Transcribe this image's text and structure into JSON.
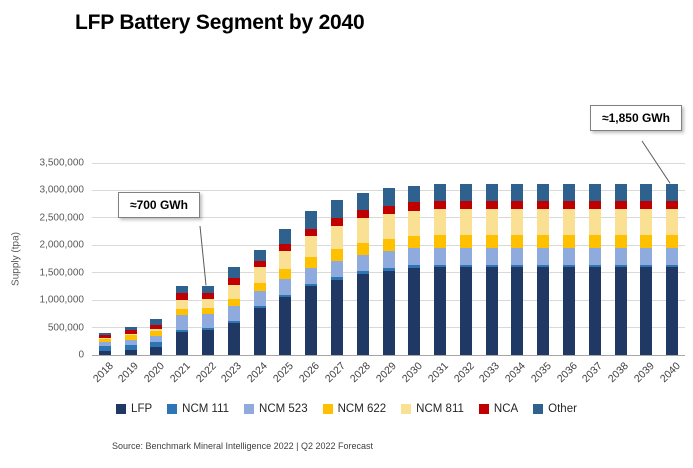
{
  "title": "LFP Battery Segment by 2040",
  "source": "Source:  Benchmark Mineral Intelligence 2022 | Q2 2022 Forecast",
  "chart_data": {
    "type": "bar",
    "stacked": true,
    "title": "LFP Battery Segment by 2040",
    "xlabel": "",
    "ylabel": "Supply (tpa)",
    "ylim": [
      0,
      3500000
    ],
    "ytick_step": 500000,
    "ytick_labels": [
      "0",
      "500,000",
      "1,000,000",
      "1,500,000",
      "2,000,000",
      "2,500,000",
      "3,000,000",
      "3,500,000"
    ],
    "grid": true,
    "legend_position": "bottom",
    "categories": [
      "2018",
      "2019",
      "2020",
      "2021",
      "2022",
      "2023",
      "2024",
      "2025",
      "2026",
      "2027",
      "2028",
      "2029",
      "2030",
      "2031",
      "2032",
      "2033",
      "2034",
      "2035",
      "2036",
      "2037",
      "2038",
      "2039",
      "2040"
    ],
    "series": [
      {
        "name": "LFP",
        "color": "#1F3864",
        "values": [
          70000,
          90000,
          140000,
          420000,
          460000,
          580000,
          850000,
          1060000,
          1250000,
          1370000,
          1480000,
          1540000,
          1590000,
          1600000,
          1600000,
          1600000,
          1600000,
          1600000,
          1600000,
          1600000,
          1600000,
          1600000,
          1600000
        ]
      },
      {
        "name": "NCM 111",
        "color": "#2E75B6",
        "values": [
          90000,
          100000,
          90000,
          30000,
          30000,
          40000,
          40000,
          40000,
          45000,
          45000,
          50000,
          50000,
          50000,
          50000,
          50000,
          50000,
          50000,
          50000,
          50000,
          50000,
          50000,
          50000,
          50000
        ]
      },
      {
        "name": "NCM 523",
        "color": "#8FAADC",
        "values": [
          70000,
          90000,
          110000,
          280000,
          260000,
          280000,
          280000,
          290000,
          290000,
          300000,
          300000,
          305000,
          305000,
          305000,
          305000,
          305000,
          305000,
          305000,
          305000,
          305000,
          305000,
          305000,
          305000
        ]
      },
      {
        "name": "NCM 622",
        "color": "#FFC000",
        "values": [
          60000,
          80000,
          90000,
          110000,
          110000,
          130000,
          150000,
          180000,
          200000,
          210000,
          220000,
          225000,
          230000,
          235000,
          235000,
          235000,
          235000,
          235000,
          235000,
          235000,
          235000,
          235000,
          235000
        ]
      },
      {
        "name": "NCM 811",
        "color": "#FAE093",
        "values": [
          20000,
          30000,
          50000,
          170000,
          160000,
          250000,
          280000,
          330000,
          380000,
          420000,
          440000,
          455000,
          460000,
          465000,
          465000,
          465000,
          465000,
          465000,
          465000,
          465000,
          465000,
          465000,
          465000
        ]
      },
      {
        "name": "NCA",
        "color": "#C00000",
        "values": [
          50000,
          60000,
          70000,
          120000,
          110000,
          120000,
          120000,
          130000,
          140000,
          145000,
          150000,
          150000,
          150000,
          150000,
          150000,
          150000,
          150000,
          150000,
          150000,
          150000,
          150000,
          150000,
          150000
        ]
      },
      {
        "name": "Other",
        "color": "#2E618E",
        "values": [
          50000,
          70000,
          100000,
          120000,
          120000,
          210000,
          200000,
          270000,
          315000,
          330000,
          310000,
          315000,
          305000,
          305000,
          305000,
          305000,
          305000,
          305000,
          305000,
          305000,
          305000,
          305000,
          305000
        ]
      }
    ],
    "annotations": [
      {
        "label": "≈700 GWh",
        "target_category": "2022"
      },
      {
        "label": "≈1,850 GWh",
        "target_category": "2040"
      }
    ]
  }
}
